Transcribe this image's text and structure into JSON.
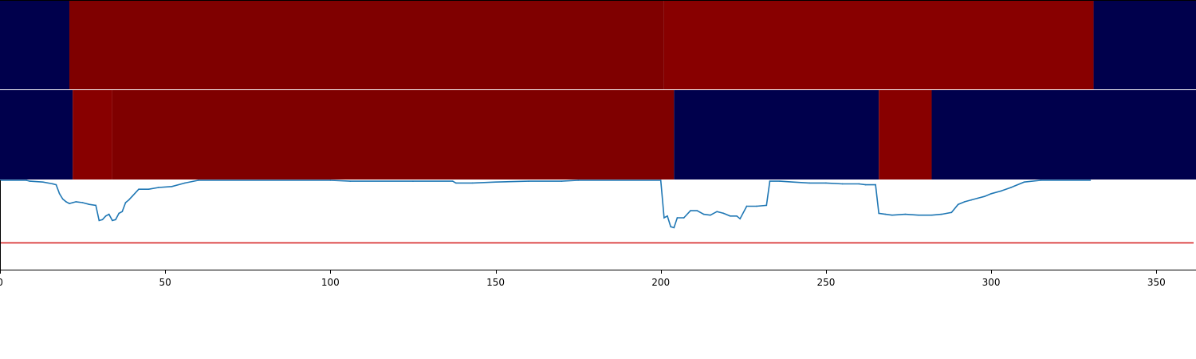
{
  "chart_data": {
    "type": "heatmap",
    "x_axis": {
      "range": [
        0,
        362
      ],
      "ticks": [
        0,
        50,
        100,
        150,
        200,
        250,
        300,
        350
      ],
      "tick_labels": [
        "0",
        "50",
        "100",
        "150",
        "200",
        "250",
        "300",
        "350"
      ]
    },
    "heatmap_rows": [
      {
        "segments": [
          {
            "x0": 0,
            "x1": 21,
            "color": "#00004c"
          },
          {
            "x0": 21,
            "x1": 201,
            "color": "#7f0000"
          },
          {
            "x0": 201,
            "x1": 331,
            "color": "#880000"
          },
          {
            "x0": 331,
            "x1": 362,
            "color": "#00004c"
          }
        ]
      },
      {
        "segments": [
          {
            "x0": 0,
            "x1": 22,
            "color": "#00004c"
          },
          {
            "x0": 22,
            "x1": 34,
            "color": "#880000"
          },
          {
            "x0": 34,
            "x1": 204,
            "color": "#7f0000"
          },
          {
            "x0": 204,
            "x1": 266,
            "color": "#00004c"
          },
          {
            "x0": 266,
            "x1": 282,
            "color": "#880000"
          },
          {
            "x0": 282,
            "x1": 362,
            "color": "#00004c"
          }
        ]
      }
    ],
    "line_series": {
      "color": "#1f77b4",
      "ylim": [
        0,
        1
      ],
      "points": [
        [
          0,
          1.0
        ],
        [
          8,
          1.0
        ],
        [
          9,
          0.99
        ],
        [
          13,
          0.98
        ],
        [
          16,
          0.96
        ],
        [
          17,
          0.95
        ],
        [
          18,
          0.85
        ],
        [
          19,
          0.79
        ],
        [
          20,
          0.76
        ],
        [
          21,
          0.74
        ],
        [
          22,
          0.75
        ],
        [
          23,
          0.76
        ],
        [
          25,
          0.75
        ],
        [
          27,
          0.73
        ],
        [
          29,
          0.72
        ],
        [
          30,
          0.55
        ],
        [
          31,
          0.56
        ],
        [
          32,
          0.6
        ],
        [
          33,
          0.62
        ],
        [
          34,
          0.55
        ],
        [
          35,
          0.56
        ],
        [
          36,
          0.63
        ],
        [
          37,
          0.65
        ],
        [
          38,
          0.75
        ],
        [
          39,
          0.78
        ],
        [
          40,
          0.82
        ],
        [
          42,
          0.9
        ],
        [
          45,
          0.9
        ],
        [
          48,
          0.92
        ],
        [
          52,
          0.93
        ],
        [
          56,
          0.97
        ],
        [
          60,
          1.0
        ],
        [
          100,
          1.0
        ],
        [
          106,
          0.99
        ],
        [
          125,
          0.99
        ],
        [
          137,
          0.99
        ],
        [
          138,
          0.97
        ],
        [
          143,
          0.97
        ],
        [
          150,
          0.98
        ],
        [
          160,
          0.99
        ],
        [
          170,
          0.99
        ],
        [
          175,
          1.0
        ],
        [
          200,
          1.0
        ],
        [
          201,
          0.58
        ],
        [
          202,
          0.6
        ],
        [
          203,
          0.48
        ],
        [
          204,
          0.47
        ],
        [
          205,
          0.58
        ],
        [
          207,
          0.58
        ],
        [
          209,
          0.66
        ],
        [
          211,
          0.66
        ],
        [
          213,
          0.62
        ],
        [
          215,
          0.61
        ],
        [
          217,
          0.65
        ],
        [
          219,
          0.63
        ],
        [
          221,
          0.6
        ],
        [
          223,
          0.6
        ],
        [
          224,
          0.57
        ],
        [
          226,
          0.71
        ],
        [
          229,
          0.71
        ],
        [
          232,
          0.72
        ],
        [
          233,
          0.99
        ],
        [
          236,
          0.99
        ],
        [
          240,
          0.98
        ],
        [
          245,
          0.97
        ],
        [
          250,
          0.97
        ],
        [
          255,
          0.96
        ],
        [
          260,
          0.96
        ],
        [
          262,
          0.95
        ],
        [
          265,
          0.95
        ],
        [
          266,
          0.63
        ],
        [
          268,
          0.62
        ],
        [
          270,
          0.61
        ],
        [
          274,
          0.62
        ],
        [
          278,
          0.61
        ],
        [
          282,
          0.61
        ],
        [
          285,
          0.62
        ],
        [
          288,
          0.64
        ],
        [
          290,
          0.73
        ],
        [
          292,
          0.76
        ],
        [
          294,
          0.78
        ],
        [
          296,
          0.8
        ],
        [
          298,
          0.82
        ],
        [
          300,
          0.85
        ],
        [
          303,
          0.88
        ],
        [
          306,
          0.92
        ],
        [
          310,
          0.98
        ],
        [
          315,
          1.0
        ],
        [
          330,
          1.0
        ]
      ]
    },
    "threshold_line": {
      "y": 0.3,
      "color": "#d62728"
    }
  }
}
